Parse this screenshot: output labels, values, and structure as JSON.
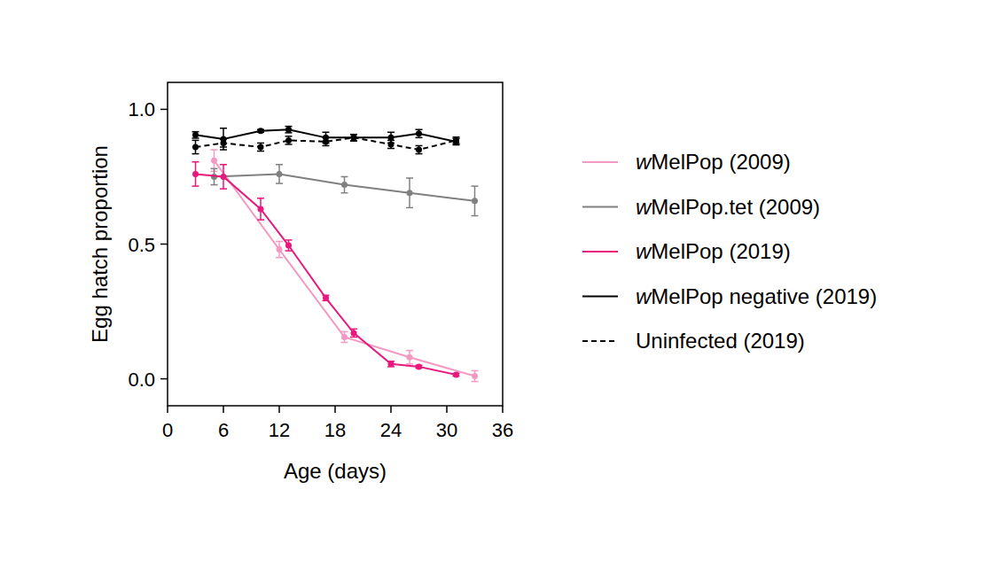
{
  "chart_data": {
    "type": "line",
    "x_label": "Age (days)",
    "y_label": "Egg hatch proportion",
    "xlim": [
      0,
      36
    ],
    "xticks": [
      0,
      6,
      12,
      18,
      24,
      30,
      36
    ],
    "ylim": [
      -0.1,
      1.1
    ],
    "yticks": [
      {
        "value": 0,
        "label": "0.0"
      },
      {
        "value": 0.5,
        "label": "0.5"
      },
      {
        "value": 1,
        "label": "1.0"
      }
    ],
    "legend": "right",
    "grid": false,
    "series": [
      {
        "name": "wMelPop (2009)",
        "color": "#f49ac2",
        "marker": "circle",
        "line_style": "solid",
        "x": [
          5,
          12,
          19,
          26,
          33
        ],
        "values": [
          0.81,
          0.48,
          0.155,
          0.08,
          0.01
        ],
        "errors": [
          0.04,
          0.03,
          0.02,
          0.025,
          0.02
        ]
      },
      {
        "name": "wMelPop.tet (2009)",
        "color": "#808080",
        "marker": "circle",
        "line_style": "solid",
        "x": [
          5,
          12,
          19,
          26,
          33
        ],
        "values": [
          0.75,
          0.76,
          0.72,
          0.69,
          0.66
        ],
        "errors": [
          0.03,
          0.035,
          0.03,
          0.055,
          0.055
        ]
      },
      {
        "name": "wMelPop (2019)",
        "color": "#e8187c",
        "marker": "circle",
        "line_style": "solid",
        "x": [
          3,
          6,
          10,
          13,
          17,
          20,
          24,
          27,
          31
        ],
        "values": [
          0.76,
          0.75,
          0.63,
          0.495,
          0.3,
          0.17,
          0.055,
          0.045,
          0.015
        ],
        "errors": [
          0.045,
          0.045,
          0.04,
          0.02,
          0.01,
          0.015,
          0.01,
          0.005,
          0.005
        ]
      },
      {
        "name": "wMelPop negative (2019)",
        "color": "#000000",
        "marker": "circle",
        "line_style": "solid",
        "x": [
          3,
          6,
          10,
          13,
          17,
          20,
          24,
          27,
          31
        ],
        "values": [
          0.905,
          0.89,
          0.92,
          0.925,
          0.895,
          0.895,
          0.895,
          0.91,
          0.88
        ],
        "errors": [
          0.012,
          0.04,
          0.005,
          0.012,
          0.02,
          0.012,
          0.02,
          0.015,
          0.012
        ]
      },
      {
        "name": "Uninfected (2019)",
        "color": "#000000",
        "marker": "circle",
        "line_style": "dashed",
        "x": [
          3,
          6,
          10,
          13,
          17,
          20,
          24,
          27,
          31
        ],
        "values": [
          0.86,
          0.875,
          0.86,
          0.885,
          0.88,
          0.895,
          0.87,
          0.85,
          0.885
        ],
        "errors": [
          0.025,
          0.015,
          0.015,
          0.015,
          0.015,
          0.012,
          0.015,
          0.015,
          0.012
        ]
      }
    ]
  }
}
